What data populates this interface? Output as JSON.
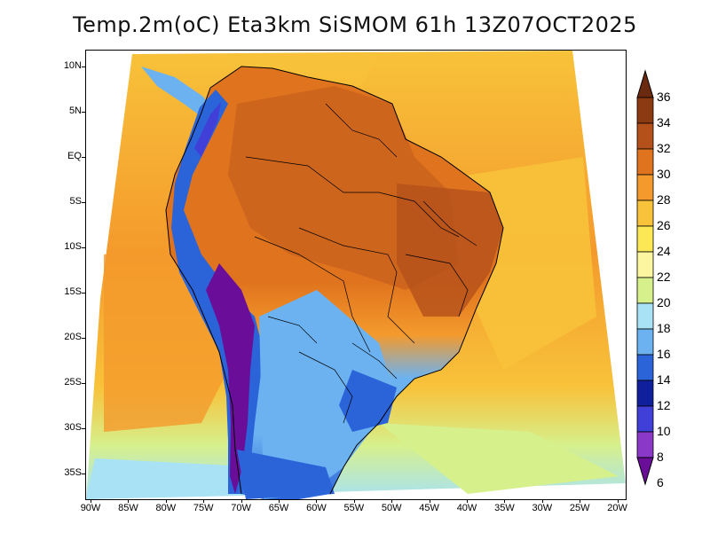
{
  "title": "Temp.2m(oC) Eta3km SiSMOM 61h 13Z07OCT2025",
  "latitude_ticks": [
    "10N",
    "5N",
    "EQ",
    "5S",
    "10S",
    "15S",
    "20S",
    "25S",
    "30S",
    "35S"
  ],
  "longitude_ticks": [
    "90W",
    "85W",
    "80W",
    "75W",
    "70W",
    "65W",
    "60W",
    "55W",
    "50W",
    "45W",
    "40W",
    "35W",
    "30W",
    "25W",
    "20W"
  ],
  "colorbar": {
    "labels": [
      "36",
      "34",
      "32",
      "30",
      "28",
      "26",
      "24",
      "22",
      "20",
      "18",
      "16",
      "14",
      "12",
      "10",
      "8",
      "6"
    ],
    "colors": [
      "#6b2a10",
      "#8c3a12",
      "#b4501a",
      "#e0741e",
      "#f49a2c",
      "#f8c23a",
      "#fbe854",
      "#fdf6a0",
      "#d6f08c",
      "#a8e2f4",
      "#6cb2f0",
      "#2a64d8",
      "#10209c",
      "#4040d8",
      "#8a38c8",
      "#6a0e9a"
    ]
  }
}
